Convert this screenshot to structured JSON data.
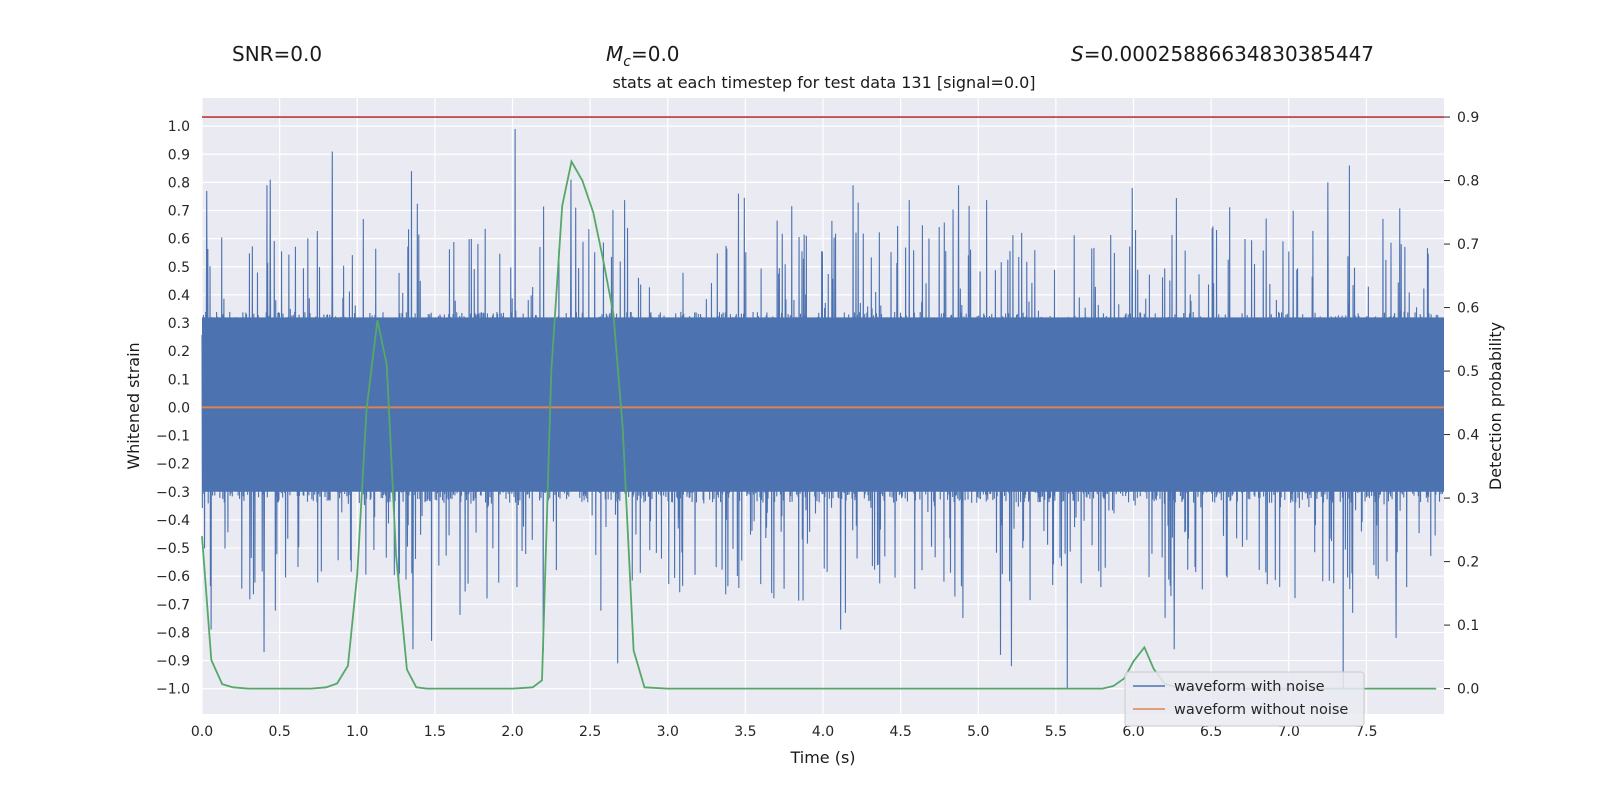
{
  "chart_data": {
    "type": "line",
    "stats": {
      "snr": "SNR=0.0",
      "mc_symbol": "M",
      "mc_sub": "c",
      "mc_value": "=0.0",
      "s_symbol": "S",
      "s_value": "=0.00025886634830385447"
    },
    "title": "stats at each timestep for test data 131 [signal=0.0]",
    "xlabel": "Time (s)",
    "ylabel": "Whitened strain",
    "y2label": "Detection probability",
    "xlim": [
      0.0,
      8.0
    ],
    "ylim": [
      -1.09,
      1.1
    ],
    "y2lim": [
      -0.04,
      0.93
    ],
    "xticks": [
      0.0,
      0.5,
      1.0,
      1.5,
      2.0,
      2.5,
      3.0,
      3.5,
      4.0,
      4.5,
      5.0,
      5.5,
      6.0,
      6.5,
      7.0,
      7.5
    ],
    "xtick_labels": [
      "0.0",
      "0.5",
      "1.0",
      "1.5",
      "2.0",
      "2.5",
      "3.0",
      "3.5",
      "4.0",
      "4.5",
      "5.0",
      "5.5",
      "6.0",
      "6.5",
      "7.0",
      "7.5"
    ],
    "yticks": [
      1.0,
      0.9,
      0.8,
      0.7,
      0.6,
      0.5,
      0.4,
      0.3,
      0.2,
      0.1,
      0.0,
      -0.1,
      -0.2,
      -0.3,
      -0.4,
      -0.5,
      -0.6,
      -0.7,
      -0.8,
      -0.9,
      -1.0
    ],
    "ytick_labels": [
      "1.0",
      "0.9",
      "0.8",
      "0.7",
      "0.6",
      "0.5",
      "0.4",
      "0.3",
      "0.2",
      "0.1",
      "0.0",
      "−0.1",
      "−0.2",
      "−0.3",
      "−0.4",
      "−0.5",
      "−0.6",
      "−0.7",
      "−0.8",
      "−0.9",
      "−1.0"
    ],
    "y2ticks": [
      0.9,
      0.8,
      0.7,
      0.6,
      0.5,
      0.4,
      0.3,
      0.2,
      0.1,
      0.0
    ],
    "y2tick_labels": [
      "0.9",
      "0.8",
      "0.7",
      "0.6",
      "0.5",
      "0.4",
      "0.3",
      "0.2",
      "0.1",
      "0.0"
    ],
    "series": [
      {
        "name": "waveform with noise",
        "color": "#4c72b0",
        "axis": "left",
        "description": "dense whitened noise, core amplitude ~±0.3, spikes up to ~±1.0",
        "core_envelope": [
          -0.3,
          0.32
        ],
        "upper_spikes": [
          [
            0.03,
            0.77
          ],
          [
            0.42,
            0.79
          ],
          [
            0.44,
            0.81
          ],
          [
            0.84,
            0.91
          ],
          [
            1.35,
            0.84
          ],
          [
            2.02,
            0.99
          ],
          [
            2.38,
            0.81
          ],
          [
            3.46,
            0.76
          ],
          [
            4.2,
            0.79
          ],
          [
            4.88,
            0.79
          ],
          [
            5.58,
            0.92
          ],
          [
            6.0,
            0.78
          ],
          [
            7.26,
            0.8
          ],
          [
            7.4,
            0.86
          ]
        ],
        "lower_spikes": [
          [
            0.06,
            -0.79
          ],
          [
            0.4,
            -0.87
          ],
          [
            1.36,
            -0.86
          ],
          [
            1.48,
            -0.83
          ],
          [
            2.2,
            -0.87
          ],
          [
            2.68,
            -0.91
          ],
          [
            4.12,
            -0.79
          ],
          [
            5.15,
            -0.88
          ],
          [
            5.22,
            -0.92
          ],
          [
            5.58,
            -1.0
          ],
          [
            6.27,
            -0.86
          ],
          [
            7.36,
            -1.0
          ],
          [
            7.7,
            -0.82
          ]
        ]
      },
      {
        "name": "waveform without noise",
        "color": "#dd8452",
        "axis": "left",
        "x": [
          0.0,
          8.0
        ],
        "y": [
          0.0,
          0.0
        ]
      },
      {
        "name": "detection probability",
        "color": "#55a868",
        "axis": "right",
        "x": [
          0.0,
          0.06,
          0.13,
          0.2,
          0.3,
          0.5,
          0.7,
          0.8,
          0.87,
          0.94,
          1.0,
          1.06,
          1.13,
          1.19,
          1.25,
          1.32,
          1.38,
          1.45,
          1.6,
          1.8,
          2.0,
          2.13,
          2.19,
          2.25,
          2.32,
          2.38,
          2.45,
          2.52,
          2.58,
          2.65,
          2.71,
          2.78,
          2.85,
          3.0,
          4.0,
          5.0,
          5.8,
          5.87,
          5.94,
          6.0,
          6.07,
          6.13,
          6.2,
          6.3,
          6.5,
          7.0,
          7.5,
          7.95
        ],
        "y": [
          0.24,
          0.045,
          0.007,
          0.002,
          0.0,
          0.0,
          0.0,
          0.002,
          0.008,
          0.036,
          0.18,
          0.44,
          0.58,
          0.51,
          0.21,
          0.03,
          0.002,
          0.0,
          0.0,
          0.0,
          0.0,
          0.002,
          0.013,
          0.5,
          0.76,
          0.83,
          0.8,
          0.75,
          0.68,
          0.59,
          0.41,
          0.06,
          0.002,
          0.0,
          0.0,
          0.0,
          0.0,
          0.004,
          0.016,
          0.043,
          0.065,
          0.031,
          0.008,
          0.0,
          0.0,
          0.0,
          0.0,
          0.0
        ]
      },
      {
        "name": "threshold",
        "color": "#c44e52",
        "axis": "right",
        "x": [
          0.0,
          8.0
        ],
        "y": [
          0.9,
          0.9
        ]
      }
    ],
    "legend": {
      "position": "lower right",
      "entries": [
        {
          "label": "waveform with noise",
          "color": "#4c72b0"
        },
        {
          "label": "waveform without noise",
          "color": "#dd8452"
        }
      ]
    },
    "grid": true,
    "style": "seaborn darkgrid"
  }
}
